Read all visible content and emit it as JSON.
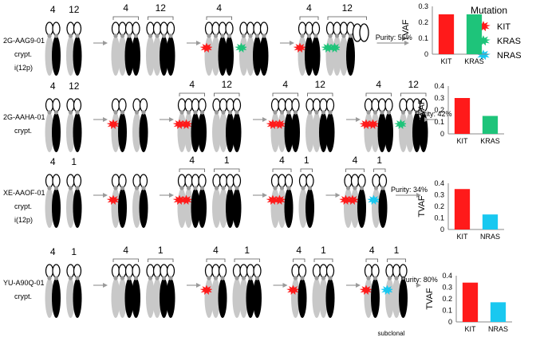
{
  "legend": {
    "title": "Mutation",
    "items": [
      {
        "label": "KIT",
        "color": "#ff1a1a"
      },
      {
        "label": "KRAS",
        "color": "#1ec47a"
      },
      {
        "label": "NRAS",
        "color": "#19c8f0"
      }
    ]
  },
  "colors": {
    "light": "#c8c8c8",
    "dark": "#000000",
    "arrow": "#9a9a9a",
    "centromere": "#9a9a9a"
  },
  "rows": [
    {
      "sample": "2G-AAG9-01",
      "sub1": "crypt.",
      "sub2": "i(12p)",
      "chrom_labels": [
        "4",
        "12"
      ],
      "purity": "Purity: 55%",
      "note": "",
      "stages": [
        {
          "groups": [
            {
              "label": "4",
              "chroms": [
                {
                  "t": "ch",
                  "c": "L"
                },
                {
                  "t": "ch",
                  "c": "D"
                }
              ]
            },
            {
              "label": "12",
              "chroms": [
                {
                  "t": "ch",
                  "c": "L"
                },
                {
                  "t": "ch",
                  "c": "D"
                }
              ]
            }
          ]
        },
        {
          "groups": [
            {
              "label": "4",
              "chroms": [
                {
                  "t": "ch",
                  "c": "L"
                },
                {
                  "t": "ch",
                  "c": "L"
                },
                {
                  "t": "ch",
                  "c": "D"
                },
                {
                  "t": "ch",
                  "c": "D"
                }
              ]
            },
            {
              "label": "12",
              "chroms": [
                {
                  "t": "ch",
                  "c": "L"
                },
                {
                  "t": "ch",
                  "c": "L"
                },
                {
                  "t": "ch",
                  "c": "D"
                },
                {
                  "t": "ch",
                  "c": "D"
                }
              ]
            }
          ]
        },
        {
          "groups": [
            {
              "label": "4",
              "chroms": [
                {
                  "t": "ch",
                  "c": "L",
                  "m": "KIT"
                },
                {
                  "t": "ch",
                  "c": "L"
                },
                {
                  "t": "ch",
                  "c": "D"
                },
                {
                  "t": "ch",
                  "c": "D"
                }
              ]
            },
            {
              "label": "",
              "chroms": [
                {
                  "t": "ch",
                  "c": "L",
                  "m": "KRAS"
                },
                {
                  "t": "ch",
                  "c": "L"
                },
                {
                  "t": "ch",
                  "c": "D"
                },
                {
                  "t": "ch",
                  "c": "D"
                }
              ]
            }
          ]
        },
        {
          "groups": [
            {
              "label": "4",
              "chroms": [
                {
                  "t": "ch",
                  "c": "L",
                  "m": "KIT"
                },
                {
                  "t": "ch",
                  "c": "D"
                },
                {
                  "t": "ch",
                  "c": "D"
                }
              ]
            },
            {
              "label": "12",
              "chroms": [
                {
                  "t": "ch",
                  "c": "L",
                  "m": "KRAS"
                },
                {
                  "t": "ch",
                  "c": "L",
                  "m": "KRAS"
                },
                {
                  "t": "ch",
                  "c": "L"
                },
                {
                  "t": "ch",
                  "c": "D"
                },
                {
                  "t": "iso"
                },
                {
                  "t": "iso"
                }
              ]
            }
          ]
        }
      ]
    },
    {
      "sample": "2G-AAHA-01",
      "sub1": "crypt.",
      "sub2": "",
      "chrom_labels": [
        "4",
        "12"
      ],
      "purity": "Purity: 42%",
      "note": "",
      "stages": [
        {
          "groups": [
            {
              "label": "4",
              "chroms": [
                {
                  "t": "ch",
                  "c": "L"
                },
                {
                  "t": "ch",
                  "c": "D"
                }
              ]
            },
            {
              "label": "12",
              "chroms": [
                {
                  "t": "ch",
                  "c": "L"
                },
                {
                  "t": "ch",
                  "c": "D"
                }
              ]
            }
          ]
        },
        {
          "groups": [
            {
              "label": "",
              "chroms": [
                {
                  "t": "ch",
                  "c": "L",
                  "m": "KIT"
                },
                {
                  "t": "ch",
                  "c": "D"
                }
              ]
            },
            {
              "label": "",
              "chroms": [
                {
                  "t": "ch",
                  "c": "L"
                },
                {
                  "t": "ch",
                  "c": "D"
                }
              ]
            }
          ]
        },
        {
          "groups": [
            {
              "label": "4",
              "chroms": [
                {
                  "t": "ch",
                  "c": "L",
                  "m": "KIT"
                },
                {
                  "t": "ch",
                  "c": "L",
                  "m": "KIT"
                },
                {
                  "t": "ch",
                  "c": "D"
                },
                {
                  "t": "ch",
                  "c": "D"
                }
              ]
            },
            {
              "label": "12",
              "chroms": [
                {
                  "t": "ch",
                  "c": "L"
                },
                {
                  "t": "ch",
                  "c": "L"
                },
                {
                  "t": "ch",
                  "c": "D"
                },
                {
                  "t": "ch",
                  "c": "D"
                }
              ]
            }
          ]
        },
        {
          "groups": [
            {
              "label": "4",
              "chroms": [
                {
                  "t": "ch",
                  "c": "L",
                  "m": "KIT"
                },
                {
                  "t": "ch",
                  "c": "L",
                  "m": "KIT"
                },
                {
                  "t": "ch",
                  "c": "D"
                },
                {
                  "t": "ch",
                  "c": "D"
                }
              ]
            },
            {
              "label": "12",
              "chroms": [
                {
                  "t": "ch",
                  "c": "L"
                },
                {
                  "t": "ch",
                  "c": "L"
                },
                {
                  "t": "ch",
                  "c": "D"
                },
                {
                  "t": "ch",
                  "c": "D"
                }
              ]
            }
          ]
        },
        {
          "groups": [
            {
              "label": "4",
              "chroms": [
                {
                  "t": "ch",
                  "c": "L",
                  "m": "KIT"
                },
                {
                  "t": "ch",
                  "c": "L",
                  "m": "KIT"
                },
                {
                  "t": "ch",
                  "c": "D"
                },
                {
                  "t": "ch",
                  "c": "D"
                }
              ]
            },
            {
              "label": "12",
              "chroms": [
                {
                  "t": "ch",
                  "c": "L",
                  "m": "KRAS"
                },
                {
                  "t": "ch",
                  "c": "L"
                },
                {
                  "t": "ch",
                  "c": "D"
                },
                {
                  "t": "ch",
                  "c": "D"
                }
              ]
            }
          ]
        }
      ]
    },
    {
      "sample": "XE-AAOF-01",
      "sub1": "crypt.",
      "sub2": "i(12p)",
      "chrom_labels": [
        "4",
        "1"
      ],
      "purity": "Purity: 34%",
      "note": "",
      "stages": [
        {
          "groups": [
            {
              "label": "4",
              "chroms": [
                {
                  "t": "ch",
                  "c": "L"
                },
                {
                  "t": "ch",
                  "c": "D"
                }
              ]
            },
            {
              "label": "1",
              "chroms": [
                {
                  "t": "ch",
                  "c": "L"
                },
                {
                  "t": "ch",
                  "c": "D"
                }
              ]
            }
          ]
        },
        {
          "groups": [
            {
              "label": "",
              "chroms": [
                {
                  "t": "ch",
                  "c": "L",
                  "m": "KIT"
                },
                {
                  "t": "ch",
                  "c": "D"
                }
              ]
            },
            {
              "label": "",
              "chroms": [
                {
                  "t": "ch",
                  "c": "L"
                },
                {
                  "t": "ch",
                  "c": "D"
                }
              ]
            }
          ]
        },
        {
          "groups": [
            {
              "label": "4",
              "chroms": [
                {
                  "t": "ch",
                  "c": "L",
                  "m": "KIT"
                },
                {
                  "t": "ch",
                  "c": "L",
                  "m": "KIT"
                },
                {
                  "t": "ch",
                  "c": "D"
                },
                {
                  "t": "ch",
                  "c": "D"
                }
              ]
            },
            {
              "label": "1",
              "chroms": [
                {
                  "t": "ch",
                  "c": "L"
                },
                {
                  "t": "ch",
                  "c": "L"
                },
                {
                  "t": "ch",
                  "c": "D"
                },
                {
                  "t": "ch",
                  "c": "D"
                }
              ]
            }
          ]
        },
        {
          "groups": [
            {
              "label": "4",
              "chroms": [
                {
                  "t": "ch",
                  "c": "L",
                  "m": "KIT"
                },
                {
                  "t": "ch",
                  "c": "L",
                  "m": "KIT"
                },
                {
                  "t": "ch",
                  "c": "D"
                }
              ]
            },
            {
              "label": "1",
              "chroms": [
                {
                  "t": "ch",
                  "c": "L"
                },
                {
                  "t": "ch",
                  "c": "D"
                }
              ]
            }
          ]
        },
        {
          "groups": [
            {
              "label": "4",
              "chroms": [
                {
                  "t": "ch",
                  "c": "L",
                  "m": "KIT"
                },
                {
                  "t": "ch",
                  "c": "L",
                  "m": "KIT"
                },
                {
                  "t": "ch",
                  "c": "D"
                }
              ]
            },
            {
              "label": "1",
              "chroms": [
                {
                  "t": "ch",
                  "c": "L",
                  "m": "NRAS"
                },
                {
                  "t": "ch",
                  "c": "D"
                }
              ]
            }
          ]
        }
      ]
    },
    {
      "sample": "YU-A90Q-01",
      "sub1": "crypt.",
      "sub2": "",
      "chrom_labels": [
        "4",
        "1"
      ],
      "purity": "Purity: 80%",
      "note": "subclonal",
      "stages": [
        {
          "groups": [
            {
              "label": "4",
              "chroms": [
                {
                  "t": "ch",
                  "c": "L"
                },
                {
                  "t": "ch",
                  "c": "D"
                }
              ]
            },
            {
              "label": "1",
              "chroms": [
                {
                  "t": "ch",
                  "c": "L"
                },
                {
                  "t": "ch",
                  "c": "D"
                }
              ]
            }
          ]
        },
        {
          "groups": [
            {
              "label": "4",
              "chroms": [
                {
                  "t": "ch",
                  "c": "L"
                },
                {
                  "t": "ch",
                  "c": "L"
                },
                {
                  "t": "ch",
                  "c": "D"
                },
                {
                  "t": "ch",
                  "c": "D"
                }
              ]
            },
            {
              "label": "1",
              "chroms": [
                {
                  "t": "ch",
                  "c": "L"
                },
                {
                  "t": "ch",
                  "c": "L"
                },
                {
                  "t": "ch",
                  "c": "D"
                },
                {
                  "t": "ch",
                  "c": "D"
                }
              ]
            }
          ]
        },
        {
          "groups": [
            {
              "label": "4",
              "chroms": [
                {
                  "t": "ch",
                  "c": "L",
                  "m": "KIT"
                },
                {
                  "t": "ch",
                  "c": "L"
                },
                {
                  "t": "ch",
                  "c": "D"
                }
              ]
            },
            {
              "label": "1",
              "chroms": [
                {
                  "t": "ch",
                  "c": "L"
                },
                {
                  "t": "ch",
                  "c": "L"
                },
                {
                  "t": "ch",
                  "c": "D"
                },
                {
                  "t": "ch",
                  "c": "D"
                }
              ]
            }
          ]
        },
        {
          "groups": [
            {
              "label": "4",
              "chroms": [
                {
                  "t": "ch",
                  "c": "L",
                  "m": "KIT"
                },
                {
                  "t": "ch",
                  "c": "D"
                }
              ]
            },
            {
              "label": "1",
              "chroms": [
                {
                  "t": "ch",
                  "c": "L"
                },
                {
                  "t": "ch",
                  "c": "L"
                },
                {
                  "t": "ch",
                  "c": "D"
                }
              ]
            }
          ]
        },
        {
          "groups": [
            {
              "label": "4",
              "chroms": [
                {
                  "t": "ch",
                  "c": "L",
                  "m": "KIT"
                },
                {
                  "t": "ch",
                  "c": "D"
                }
              ]
            },
            {
              "label": "1",
              "chroms": [
                {
                  "t": "ch",
                  "c": "L",
                  "m": "NRAS"
                },
                {
                  "t": "ch",
                  "c": "L"
                },
                {
                  "t": "ch",
                  "c": "D"
                }
              ]
            }
          ]
        }
      ]
    }
  ],
  "chart_data": [
    {
      "type": "bar",
      "title": "",
      "xlabel": "",
      "ylabel": "TVAF",
      "categories": [
        "KIT",
        "KRAS"
      ],
      "values": [
        0.25,
        0.25
      ],
      "colors": [
        "#ff1a1a",
        "#1ec47a"
      ],
      "ylim": [
        0,
        0.3
      ],
      "yticks": [
        "0",
        "0.1",
        "0.2",
        "0.3"
      ]
    },
    {
      "type": "bar",
      "title": "",
      "xlabel": "",
      "ylabel": "TVAF",
      "categories": [
        "KIT",
        "KRAS"
      ],
      "values": [
        0.3,
        0.15
      ],
      "colors": [
        "#ff1a1a",
        "#1ec47a"
      ],
      "ylim": [
        0,
        0.4
      ],
      "yticks": [
        "0",
        "0.1",
        "0.2",
        "0.3",
        "0.4"
      ]
    },
    {
      "type": "bar",
      "title": "",
      "xlabel": "",
      "ylabel": "TVAF",
      "categories": [
        "KIT",
        "NRAS"
      ],
      "values": [
        0.35,
        0.13
      ],
      "colors": [
        "#ff1a1a",
        "#19c8f0"
      ],
      "ylim": [
        0,
        0.4
      ],
      "yticks": [
        "0",
        "0.1",
        "0.2",
        "0.3",
        "0.4"
      ]
    },
    {
      "type": "bar",
      "title": "",
      "xlabel": "",
      "ylabel": "TVAF",
      "categories": [
        "KIT",
        "NRAS"
      ],
      "values": [
        0.34,
        0.17
      ],
      "colors": [
        "#ff1a1a",
        "#19c8f0"
      ],
      "ylim": [
        0,
        0.4
      ],
      "yticks": [
        "0",
        "0.1",
        "0.2",
        "0.3",
        "0.4"
      ]
    }
  ]
}
